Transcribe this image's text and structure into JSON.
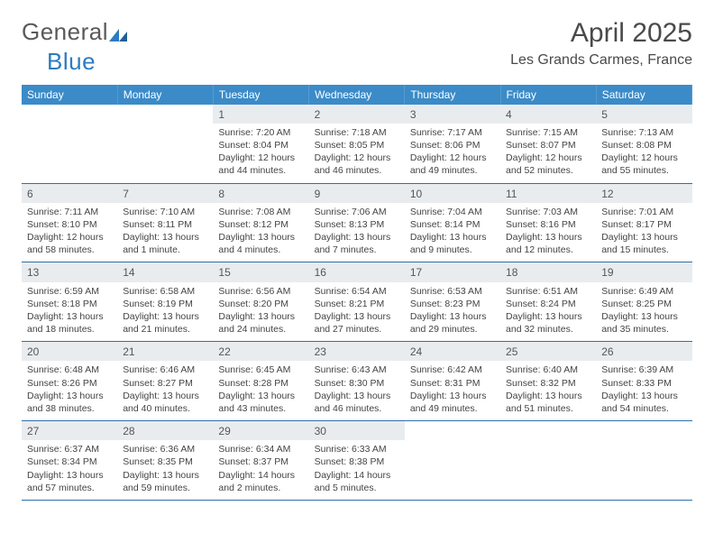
{
  "brand": {
    "part1": "General",
    "part2": "Blue",
    "color1": "#5a5a5a",
    "color2": "#2d7bc0"
  },
  "title": "April 2025",
  "location": "Les Grands Carmes, France",
  "theme": {
    "header_bg": "#3b8bc8",
    "header_fg": "#ffffff",
    "daynum_bg": "#e9ecef",
    "rule_color": "#2f6fa5",
    "text_color": "#444444"
  },
  "weekdays": [
    "Sunday",
    "Monday",
    "Tuesday",
    "Wednesday",
    "Thursday",
    "Friday",
    "Saturday"
  ],
  "weeks": [
    [
      {
        "empty": true
      },
      {
        "empty": true
      },
      {
        "day": "1",
        "sunrise": "Sunrise: 7:20 AM",
        "sunset": "Sunset: 8:04 PM",
        "daylight": "Daylight: 12 hours and 44 minutes."
      },
      {
        "day": "2",
        "sunrise": "Sunrise: 7:18 AM",
        "sunset": "Sunset: 8:05 PM",
        "daylight": "Daylight: 12 hours and 46 minutes."
      },
      {
        "day": "3",
        "sunrise": "Sunrise: 7:17 AM",
        "sunset": "Sunset: 8:06 PM",
        "daylight": "Daylight: 12 hours and 49 minutes."
      },
      {
        "day": "4",
        "sunrise": "Sunrise: 7:15 AM",
        "sunset": "Sunset: 8:07 PM",
        "daylight": "Daylight: 12 hours and 52 minutes."
      },
      {
        "day": "5",
        "sunrise": "Sunrise: 7:13 AM",
        "sunset": "Sunset: 8:08 PM",
        "daylight": "Daylight: 12 hours and 55 minutes."
      }
    ],
    [
      {
        "day": "6",
        "sunrise": "Sunrise: 7:11 AM",
        "sunset": "Sunset: 8:10 PM",
        "daylight": "Daylight: 12 hours and 58 minutes."
      },
      {
        "day": "7",
        "sunrise": "Sunrise: 7:10 AM",
        "sunset": "Sunset: 8:11 PM",
        "daylight": "Daylight: 13 hours and 1 minute."
      },
      {
        "day": "8",
        "sunrise": "Sunrise: 7:08 AM",
        "sunset": "Sunset: 8:12 PM",
        "daylight": "Daylight: 13 hours and 4 minutes."
      },
      {
        "day": "9",
        "sunrise": "Sunrise: 7:06 AM",
        "sunset": "Sunset: 8:13 PM",
        "daylight": "Daylight: 13 hours and 7 minutes."
      },
      {
        "day": "10",
        "sunrise": "Sunrise: 7:04 AM",
        "sunset": "Sunset: 8:14 PM",
        "daylight": "Daylight: 13 hours and 9 minutes."
      },
      {
        "day": "11",
        "sunrise": "Sunrise: 7:03 AM",
        "sunset": "Sunset: 8:16 PM",
        "daylight": "Daylight: 13 hours and 12 minutes."
      },
      {
        "day": "12",
        "sunrise": "Sunrise: 7:01 AM",
        "sunset": "Sunset: 8:17 PM",
        "daylight": "Daylight: 13 hours and 15 minutes."
      }
    ],
    [
      {
        "day": "13",
        "sunrise": "Sunrise: 6:59 AM",
        "sunset": "Sunset: 8:18 PM",
        "daylight": "Daylight: 13 hours and 18 minutes."
      },
      {
        "day": "14",
        "sunrise": "Sunrise: 6:58 AM",
        "sunset": "Sunset: 8:19 PM",
        "daylight": "Daylight: 13 hours and 21 minutes."
      },
      {
        "day": "15",
        "sunrise": "Sunrise: 6:56 AM",
        "sunset": "Sunset: 8:20 PM",
        "daylight": "Daylight: 13 hours and 24 minutes."
      },
      {
        "day": "16",
        "sunrise": "Sunrise: 6:54 AM",
        "sunset": "Sunset: 8:21 PM",
        "daylight": "Daylight: 13 hours and 27 minutes."
      },
      {
        "day": "17",
        "sunrise": "Sunrise: 6:53 AM",
        "sunset": "Sunset: 8:23 PM",
        "daylight": "Daylight: 13 hours and 29 minutes."
      },
      {
        "day": "18",
        "sunrise": "Sunrise: 6:51 AM",
        "sunset": "Sunset: 8:24 PM",
        "daylight": "Daylight: 13 hours and 32 minutes."
      },
      {
        "day": "19",
        "sunrise": "Sunrise: 6:49 AM",
        "sunset": "Sunset: 8:25 PM",
        "daylight": "Daylight: 13 hours and 35 minutes."
      }
    ],
    [
      {
        "day": "20",
        "sunrise": "Sunrise: 6:48 AM",
        "sunset": "Sunset: 8:26 PM",
        "daylight": "Daylight: 13 hours and 38 minutes."
      },
      {
        "day": "21",
        "sunrise": "Sunrise: 6:46 AM",
        "sunset": "Sunset: 8:27 PM",
        "daylight": "Daylight: 13 hours and 40 minutes."
      },
      {
        "day": "22",
        "sunrise": "Sunrise: 6:45 AM",
        "sunset": "Sunset: 8:28 PM",
        "daylight": "Daylight: 13 hours and 43 minutes."
      },
      {
        "day": "23",
        "sunrise": "Sunrise: 6:43 AM",
        "sunset": "Sunset: 8:30 PM",
        "daylight": "Daylight: 13 hours and 46 minutes."
      },
      {
        "day": "24",
        "sunrise": "Sunrise: 6:42 AM",
        "sunset": "Sunset: 8:31 PM",
        "daylight": "Daylight: 13 hours and 49 minutes."
      },
      {
        "day": "25",
        "sunrise": "Sunrise: 6:40 AM",
        "sunset": "Sunset: 8:32 PM",
        "daylight": "Daylight: 13 hours and 51 minutes."
      },
      {
        "day": "26",
        "sunrise": "Sunrise: 6:39 AM",
        "sunset": "Sunset: 8:33 PM",
        "daylight": "Daylight: 13 hours and 54 minutes."
      }
    ],
    [
      {
        "day": "27",
        "sunrise": "Sunrise: 6:37 AM",
        "sunset": "Sunset: 8:34 PM",
        "daylight": "Daylight: 13 hours and 57 minutes."
      },
      {
        "day": "28",
        "sunrise": "Sunrise: 6:36 AM",
        "sunset": "Sunset: 8:35 PM",
        "daylight": "Daylight: 13 hours and 59 minutes."
      },
      {
        "day": "29",
        "sunrise": "Sunrise: 6:34 AM",
        "sunset": "Sunset: 8:37 PM",
        "daylight": "Daylight: 14 hours and 2 minutes."
      },
      {
        "day": "30",
        "sunrise": "Sunrise: 6:33 AM",
        "sunset": "Sunset: 8:38 PM",
        "daylight": "Daylight: 14 hours and 5 minutes."
      },
      {
        "empty": true
      },
      {
        "empty": true
      },
      {
        "empty": true
      }
    ]
  ]
}
